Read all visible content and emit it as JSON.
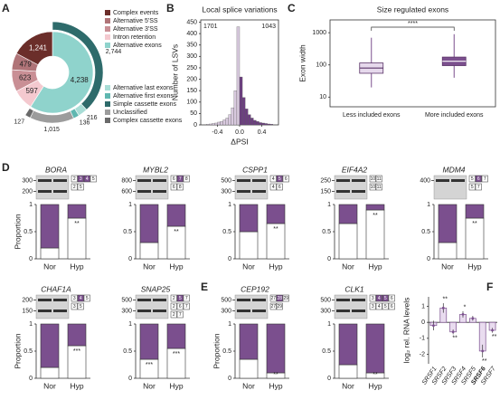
{
  "chart_data": [
    {
      "type": "donut",
      "label": "A",
      "inner": {
        "values": [
          4238,
          597,
          623,
          479,
          1241
        ],
        "value_labels": [
          "4,238",
          "597",
          "623",
          "479",
          "1,241"
        ],
        "colors": [
          "#8fd3cc",
          "#f4c9cf",
          "#c98f95",
          "#b07478",
          "#6b2e2a"
        ]
      },
      "outer": {
        "values": [
          2744,
          216,
          136,
          1015,
          127
        ],
        "value_labels": [
          "2,744",
          "216",
          "136",
          "1,015",
          "127"
        ],
        "colors": [
          "#2e6b6b",
          "#a8ddd6",
          "#5fb7b0",
          "#9c9c9c",
          "#6a6a6a"
        ]
      },
      "legend": [
        {
          "name": "Complex events",
          "color": "#6b2e2a"
        },
        {
          "name": "Alternative 5'SS",
          "color": "#b07478"
        },
        {
          "name": "Alternative 3'SS",
          "color": "#c98f95"
        },
        {
          "name": "Intron retention",
          "color": "#f4c9cf"
        },
        {
          "name": "Alternative exons",
          "color": "#8fd3cc"
        },
        {
          "name": "Alternative last exons",
          "color": "#a8ddd6"
        },
        {
          "name": "Alternative first exons",
          "color": "#5fb7b0"
        },
        {
          "name": "Simple cassette exons",
          "color": "#2e6b6b"
        },
        {
          "name": "Unclassified",
          "color": "#9c9c9c"
        },
        {
          "name": "Complex cassette exons",
          "color": "#6a6a6a"
        }
      ]
    },
    {
      "type": "histogram",
      "label": "B",
      "title": "Local splice variations",
      "xlabel": "ΔPSI",
      "ylabel": "Number of LSVs",
      "bins": [
        -0.6,
        -0.55,
        -0.5,
        -0.45,
        -0.4,
        -0.35,
        -0.3,
        -0.25,
        -0.2,
        -0.15,
        -0.1,
        -0.05,
        0,
        0.05,
        0.1,
        0.15,
        0.2,
        0.25,
        0.3,
        0.35,
        0.4,
        0.45,
        0.5,
        0.55,
        0.6
      ],
      "values": [
        3,
        4,
        6,
        8,
        12,
        15,
        22,
        30,
        45,
        75,
        150,
        430,
        210,
        120,
        70,
        45,
        30,
        20,
        15,
        10,
        8,
        6,
        4,
        3
      ],
      "colors": [
        "#d8c9de",
        "#d8c9de",
        "#d8c9de",
        "#d8c9de",
        "#d8c9de",
        "#d8c9de",
        "#d8c9de",
        "#d8c9de",
        "#d8c9de",
        "#d8c9de",
        "#d8c9de",
        "#d8c9de",
        "#6c3f80",
        "#6c3f80",
        "#6c3f80",
        "#6c3f80",
        "#6c3f80",
        "#6c3f80",
        "#6c3f80",
        "#6c3f80",
        "#6c3f80",
        "#6c3f80",
        "#6c3f80",
        "#6c3f80"
      ],
      "xlim": [
        -0.7,
        0.7
      ],
      "ylim": [
        0,
        460
      ],
      "xticks": [
        -0.4,
        {
          "value": 0,
          "label": "0.0"
        },
        0.4
      ],
      "yticks": [
        0,
        50,
        100,
        150,
        200,
        250,
        300,
        350,
        400,
        450
      ],
      "annotations": [
        "1701",
        "1043"
      ]
    },
    {
      "type": "box",
      "label": "C",
      "title": "Size regulated exons",
      "ylabel": "Exon width",
      "categories": [
        "Less included exons",
        "More included exons"
      ],
      "ylog": true,
      "ylim": [
        5,
        2500
      ],
      "yticks": [
        10,
        100,
        1000
      ],
      "boxes": [
        {
          "whislo": 20,
          "q1": 55,
          "med": 80,
          "q3": 115,
          "whishi": 700
        },
        {
          "whislo": 40,
          "q1": 95,
          "med": 130,
          "q3": 175,
          "whishi": 900
        }
      ],
      "colors": [
        "#e6d9ec",
        "#7b4f8e"
      ],
      "annotation": "****"
    },
    {
      "type": "gel_stack",
      "label": "D",
      "gene": "BORA",
      "bp": [
        300,
        200
      ],
      "exons": [
        [
          "2",
          "3",
          "4",
          "5"
        ],
        [
          "2",
          "5"
        ]
      ],
      "ylabel": "Proportion",
      "categories": [
        "Nor",
        "Hyp"
      ],
      "ylim": [
        0,
        1
      ],
      "yticks": [
        0,
        0.5,
        1
      ],
      "series": [
        {
          "color": "#ffffff",
          "values": [
            0.2,
            0.75
          ]
        },
        {
          "color": "#7b4f8e",
          "values": [
            0.8,
            0.25
          ]
        }
      ],
      "significance": [
        null,
        "**"
      ]
    },
    {
      "type": "gel_stack",
      "gene": "MYBL2",
      "bp": [
        800,
        600
      ],
      "exons": [
        [
          "6",
          "7",
          "8"
        ],
        [
          "6",
          "8"
        ]
      ],
      "categories": [
        "Nor",
        "Hyp"
      ],
      "ylim": [
        0,
        1
      ],
      "yticks": [
        0,
        0.5,
        1
      ],
      "series": [
        {
          "color": "#ffffff",
          "values": [
            0.3,
            0.6
          ]
        },
        {
          "color": "#7b4f8e",
          "values": [
            0.7,
            0.4
          ]
        }
      ],
      "significance": [
        null,
        "**"
      ]
    },
    {
      "type": "gel_stack",
      "gene": "CSPP1",
      "bp": [
        500,
        300
      ],
      "exons": [
        [
          "4",
          "5",
          "6"
        ],
        [
          "4",
          "6"
        ]
      ],
      "categories": [
        "Nor",
        "Hyp"
      ],
      "ylim": [
        0,
        1
      ],
      "yticks": [
        0,
        0.5,
        1
      ],
      "series": [
        {
          "color": "#ffffff",
          "values": [
            0.5,
            0.65
          ]
        },
        {
          "color": "#7b4f8e",
          "values": [
            0.5,
            0.35
          ]
        }
      ],
      "significance": [
        null,
        "**"
      ]
    },
    {
      "type": "gel_stack",
      "gene": "EIF4A2",
      "bp": [
        250,
        150
      ],
      "exons": [
        [
          "10",
          "11"
        ],
        [
          "10",
          "11"
        ]
      ],
      "categories": [
        "Nor",
        "Hyp"
      ],
      "ylim": [
        0,
        1
      ],
      "yticks": [
        0,
        0.5,
        1
      ],
      "series": [
        {
          "color": "#ffffff",
          "values": [
            0.65,
            0.9
          ]
        },
        {
          "color": "#7b4f8e",
          "values": [
            0.35,
            0.1
          ]
        }
      ],
      "significance": [
        null,
        "**"
      ]
    },
    {
      "type": "gel_stack",
      "gene": "MDM4",
      "bp": [
        400
      ],
      "exons": [
        [
          "5",
          "6",
          "7"
        ],
        [
          "5",
          "7"
        ]
      ],
      "categories": [
        "Nor",
        "Hyp"
      ],
      "ylim": [
        0,
        1
      ],
      "yticks": [
        0,
        0.5,
        1
      ],
      "series": [
        {
          "color": "#ffffff",
          "values": [
            0.3,
            0.75
          ]
        },
        {
          "color": "#7b4f8e",
          "values": [
            0.7,
            0.25
          ]
        }
      ],
      "significance": [
        null,
        "**"
      ]
    },
    {
      "type": "gel_stack",
      "gene": "CHAF1A",
      "bp": [
        200,
        150
      ],
      "exons": [
        [
          "3",
          "4",
          "5"
        ],
        [
          "3",
          "5"
        ]
      ],
      "ylabel": "Proportion",
      "categories": [
        "Nor",
        "Hyp"
      ],
      "ylim": [
        0,
        1
      ],
      "yticks": [
        0,
        0.5,
        1
      ],
      "series": [
        {
          "color": "#ffffff",
          "values": [
            0.2,
            0.6
          ]
        },
        {
          "color": "#7b4f8e",
          "values": [
            0.8,
            0.4
          ]
        }
      ],
      "significance": [
        null,
        "***"
      ]
    },
    {
      "type": "gel_stack",
      "gene": "SNAP25",
      "bp": [
        500,
        300
      ],
      "exons": [
        [
          "2",
          "5",
          "7"
        ],
        [
          "2",
          "6",
          "7"
        ],
        [
          "2",
          "7"
        ]
      ],
      "categories": [
        "Nor",
        "Hyp"
      ],
      "ylim": [
        0,
        1
      ],
      "yticks": [
        0,
        0.5,
        1
      ],
      "series": [
        {
          "color": "#ffffff",
          "values": [
            0.35,
            0.55
          ]
        },
        {
          "color": "#7b4f8e",
          "values": [
            0.65,
            0.45
          ]
        }
      ],
      "significance": [
        "***",
        "***"
      ]
    },
    {
      "type": "gel_stack",
      "label": "E",
      "gene": "CEP192",
      "bp": [
        500,
        300
      ],
      "exons": [
        [
          "27",
          "28",
          "29"
        ],
        [
          "27",
          "29"
        ]
      ],
      "ylabel": "Proportion",
      "categories": [
        "Nor",
        "Hyp"
      ],
      "ylim": [
        0,
        1
      ],
      "yticks": [
        0,
        0.5,
        1
      ],
      "series": [
        {
          "color": "#ffffff",
          "values": [
            0.35,
            0.1
          ]
        },
        {
          "color": "#7b4f8e",
          "values": [
            0.65,
            0.9
          ]
        }
      ],
      "significance": [
        null,
        "**"
      ]
    },
    {
      "type": "gel_stack",
      "gene": "CLK1",
      "bp": [
        500,
        300
      ],
      "exons": [
        [
          "3",
          "4",
          "5",
          "6"
        ],
        [
          "3",
          "4",
          "5",
          "6"
        ]
      ],
      "categories": [
        "Nor",
        "Hyp"
      ],
      "ylim": [
        0,
        1
      ],
      "yticks": [
        0,
        0.5,
        1
      ],
      "series": [
        {
          "color": "#ffffff",
          "values": [
            0.25,
            0.1
          ]
        },
        {
          "color": "#7b4f8e",
          "values": [
            0.75,
            0.9
          ]
        }
      ],
      "significance": [
        null,
        "**"
      ]
    },
    {
      "type": "bar_error",
      "label": "F",
      "ylabel": "log₂ rel. RNA levels",
      "categories": [
        "SRSF1",
        "SRSF2",
        "SRSF3",
        "SRSF4",
        "SRSF5",
        "SRSF6",
        "SRSF7"
      ],
      "highlight": "SRSF6",
      "values": [
        -0.2,
        0.9,
        -0.6,
        0.5,
        0.25,
        -1.8,
        -0.5
      ],
      "errors": [
        0.3,
        0.3,
        0.15,
        0.2,
        0.15,
        0.4,
        0.15
      ],
      "color": "#e9dcef",
      "edge": "#7b4f8e",
      "ylim": [
        -2.6,
        1.6
      ],
      "yticks": [
        -2,
        -1,
        0,
        1
      ],
      "significance": [
        null,
        "**",
        "**",
        "*",
        null,
        "**",
        "**"
      ]
    }
  ]
}
